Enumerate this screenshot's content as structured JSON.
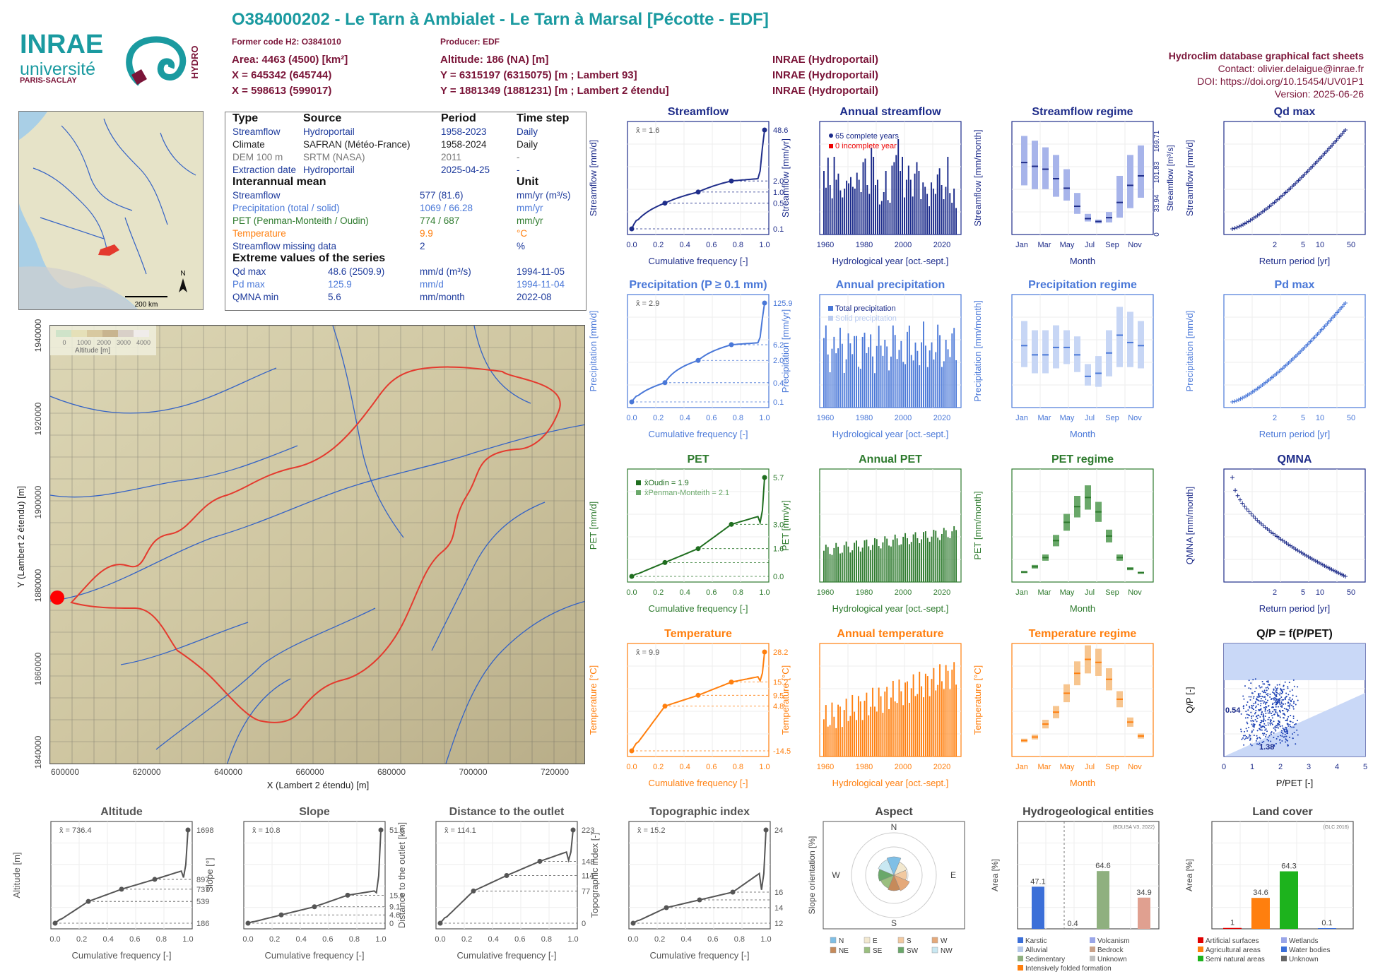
{
  "header": {
    "title": "O384000202 - Le Tarn à Ambialet - Le Tarn à Marsal [Pécotte - EDF]",
    "former_code": "Former code H2: O3841010",
    "producer": "Producer: EDF",
    "area": "Area: 4463 (4500) [km²]",
    "altitude": "Altitude: 186 (NA) [m]",
    "x93": "X = 645342 (645744)",
    "y93": "Y = 6315197 (6315075) [m ; Lambert 93]",
    "x2": "X = 598613 (599017)",
    "y2": "Y = 1881349 (1881231) [m ; Lambert 2 étendu]",
    "src1": "INRAE (Hydroportail)",
    "src2": "INRAE (Hydroportail)",
    "src3": "INRAE (Hydroportail)",
    "fact_sheets": "Hydroclim database graphical fact sheets",
    "contact": "Contact: olivier.delaigue@inrae.fr",
    "doi": "DOI: https://doi.org/10.15454/UV01P1",
    "version": "Version: 2025-06-26"
  },
  "logos": {
    "inrae": "INRAE",
    "universite": "université",
    "paris_saclay": "PARIS-SACLAY",
    "hydro": "HYDRO"
  },
  "info": {
    "h_type": "Type",
    "h_source": "Source",
    "h_period": "Period",
    "h_timestep": "Time step",
    "rows": [
      {
        "type": "Streamflow",
        "source": "Hydroportail",
        "period": "1958-2023",
        "step": "Daily"
      },
      {
        "type": "Climate",
        "source": "SAFRAN (Météo-France)",
        "period": "1958-2024",
        "step": "Daily"
      },
      {
        "type": "DEM 100 m",
        "source": "SRTM (NASA)",
        "period": "2011",
        "step": "-"
      },
      {
        "type": "Extraction date",
        "source": "Hydroportail",
        "period": "2025-04-25",
        "step": "-"
      }
    ],
    "h_interannual": "Interannual mean",
    "h_unit": "Unit",
    "means": [
      {
        "label": "Streamflow",
        "value": "577 (81.6)",
        "unit": "mm/yr (m³/s)"
      },
      {
        "label": "Precipitation (total / solid)",
        "value": "1069 / 66.28",
        "unit": "mm/yr"
      },
      {
        "label": "PET (Penman-Monteith / Oudin)",
        "value": "774 / 687",
        "unit": "mm/yr"
      },
      {
        "label": "Temperature",
        "value": "9.9",
        "unit": "°C"
      },
      {
        "label": "Streamflow missing data",
        "value": "2",
        "unit": "%"
      }
    ],
    "h_extreme": "Extreme values of the series",
    "extremes": [
      {
        "label": "Qd max",
        "value": "48.6 (2509.9)",
        "unit": "mm/d (m³/s)",
        "date": "1994-11-05"
      },
      {
        "label": "Pd max",
        "value": "125.9",
        "unit": "mm/d",
        "date": "1994-11-04"
      },
      {
        "label": "QMNA min",
        "value": "5.6",
        "unit": "mm/month",
        "date": "2022-08"
      }
    ]
  },
  "minimap": {
    "north": "N",
    "scale": "200 km"
  },
  "bigmap": {
    "legend_title": "Altitude [m]",
    "legend_ticks": [
      "0",
      "1000",
      "2000",
      "3000",
      "4000"
    ],
    "xlabel": "X (Lambert 2 étendu) [m]",
    "ylabel": "Y (Lambert 2 étendu) [m]",
    "xticks": [
      "600000",
      "620000",
      "640000",
      "660000",
      "680000",
      "700000",
      "720000"
    ],
    "yticks": [
      "1840000",
      "1860000",
      "1880000",
      "1900000",
      "1920000",
      "1940000"
    ]
  },
  "panels": {
    "streamflow": {
      "title": "Streamflow",
      "ylabel": "Streamflow [mm/d]",
      "xlabel": "Cumulative frequency [-]",
      "mean": "x̄ = 1.6",
      "right": [
        "48.6",
        "2.0",
        "1.0",
        "0.5",
        "0.1"
      ]
    },
    "annual_streamflow": {
      "title": "Annual streamflow",
      "ylabel": "Streamflow [mm/yr]",
      "xlabel": "Hydrological year [oct.-sept.]",
      "leg1": "65 complete years",
      "leg2": "0 incomplete year"
    },
    "streamflow_regime": {
      "title": "Streamflow regime",
      "ylabel": "Streamflow [mm/month]",
      "ylabel2": "Streamflow [m³/s]",
      "xlabel": "Month",
      "right": [
        "169.71",
        "101.83",
        "33.94",
        "0"
      ]
    },
    "qd_max": {
      "title": "Qd max",
      "ylabel": "Streamflow [mm/d]",
      "xlabel": "Return period [yr]"
    },
    "precipitation": {
      "title": "Precipitation (P ≥ 0.1 mm)",
      "ylabel": "Precipitation [mm/d]",
      "xlabel": "Cumulative frequency [-]",
      "mean": "x̄ = 2.9",
      "right": [
        "125.9",
        "6.2",
        "2.0",
        "0.4",
        "0.1"
      ]
    },
    "annual_precipitation": {
      "title": "Annual precipitation",
      "ylabel": "Precipitation [mm/yr]",
      "xlabel": "Hydrological year [oct.-sept.]",
      "leg1": "Total precipitation",
      "leg2": "Solid precipitation"
    },
    "precipitation_regime": {
      "title": "Precipitation regime",
      "ylabel": "Precipitation [mm/month]",
      "xlabel": "Month"
    },
    "pd_max": {
      "title": "Pd max",
      "ylabel": "Precipitation [mm/d]",
      "xlabel": "Return period [yr]"
    },
    "pet": {
      "title": "PET",
      "ylabel": "PET [mm/d]",
      "xlabel": "Cumulative frequency [-]",
      "leg1": "x̄Oudin = 1.9",
      "leg2": "x̄Penman-Monteith = 2.1",
      "right": [
        "5.7",
        "3.0",
        "1.6",
        "0.0"
      ]
    },
    "annual_pet": {
      "title": "Annual PET",
      "ylabel": "PET [mm/yr]",
      "xlabel": "Hydrological year [oct.-sept.]"
    },
    "pet_regime": {
      "title": "PET regime",
      "ylabel": "PET [mm/month]",
      "xlabel": "Month"
    },
    "qmna": {
      "title": "QMNA",
      "ylabel": "QMNA [mm/month]",
      "xlabel": "Return period [yr]"
    },
    "temperature": {
      "title": "Temperature",
      "ylabel": "Temperature [°C]",
      "xlabel": "Cumulative frequency [-]",
      "mean": "x̄ = 9.9",
      "right": [
        "28.2",
        "15.2",
        "9.5",
        "4.8",
        "-14.5"
      ]
    },
    "annual_temperature": {
      "title": "Annual temperature",
      "ylabel": "Temperature [°C]",
      "xlabel": "Hydrological year [oct.-sept.]"
    },
    "temperature_regime": {
      "title": "Temperature regime",
      "ylabel": "Temperature [°C]",
      "xlabel": "Month"
    },
    "qp": {
      "title": "Q/P = f(P/PET)",
      "ylabel": "Q/P [-]",
      "xlabel": "P/PET [-]",
      "lab1": "0.54",
      "lab2": "1.38"
    },
    "altitude": {
      "title": "Altitude",
      "ylabel": "Altitude [m]",
      "xlabel": "Cumulative frequency [-]",
      "mean": "x̄ = 736.4",
      "right": [
        "1698",
        "897",
        "737",
        "539",
        "186"
      ]
    },
    "slope": {
      "title": "Slope",
      "ylabel": "Slope [°]",
      "xlabel": "Cumulative frequency [-]",
      "mean": "x̄ = 10.8",
      "right": [
        "51.6",
        "15.5",
        "9.1",
        "4.6",
        "0"
      ]
    },
    "distance": {
      "title": "Distance to the outlet",
      "ylabel": "Distance to the outlet [km]",
      "xlabel": "Cumulative frequency [-]",
      "mean": "x̄ = 114.1",
      "right": [
        "223",
        "148",
        "114",
        "77",
        "0"
      ]
    },
    "topo": {
      "title": "Topographic index",
      "ylabel": "Topographic index [-]",
      "xlabel": "Cumulative frequency [-]",
      "mean": "x̄ = 15.2",
      "right": [
        "24",
        "16",
        "14",
        "12"
      ]
    },
    "aspect": {
      "title": "Aspect",
      "ylabel": "Slope orientation [%]",
      "dirs": [
        "N",
        "E",
        "S",
        "W"
      ],
      "legend": [
        "N",
        "E",
        "S",
        "W",
        "NE",
        "SE",
        "SW",
        "NW"
      ]
    },
    "hydrogeo": {
      "title": "Hydrogeological entities",
      "ylabel": "Area [%]",
      "source": "(BDLISA V3, 2022)",
      "legend": [
        "Karstic",
        "Volcanism",
        "Alluvial",
        "Bedrock",
        "Sedimentary",
        "Unknown",
        "Intensively folded formation"
      ]
    },
    "landcover": {
      "title": "Land cover",
      "ylabel": "Area [%]",
      "source": "(GLC 2016)",
      "legend": [
        "Artificial surfaces",
        "Wetlands",
        "Agricultural areas",
        "Water bodies",
        "Semi natural areas",
        "Unknown"
      ]
    }
  },
  "chart_data": [
    {
      "type": "line",
      "title": "Streamflow",
      "xlabel": "Cumulative frequency [-]",
      "ylabel": "Streamflow [mm/d]",
      "x": [
        0,
        0.25,
        0.5,
        0.75,
        1.0
      ],
      "y": [
        0.1,
        0.5,
        1.0,
        2.0,
        48.6
      ],
      "xlim": [
        0,
        1
      ],
      "scale": "log"
    },
    {
      "type": "bar",
      "title": "Annual streamflow",
      "ylabel": "Streamflow [mm/yr]",
      "xlim": [
        1958,
        2023
      ],
      "ylim": [
        0,
        1200
      ],
      "values": [
        720,
        530,
        870,
        560,
        410,
        880,
        620,
        690,
        500,
        420,
        520,
        610,
        580,
        650,
        540,
        520,
        700,
        620,
        480,
        820,
        860,
        560,
        460,
        980,
        880,
        560,
        620,
        340,
        380,
        480,
        720,
        390,
        360,
        780,
        820,
        900,
        1080,
        720,
        880,
        420,
        620,
        780,
        620,
        430,
        690,
        820,
        720,
        400,
        590,
        540,
        460,
        320,
        590,
        520,
        460,
        680,
        750,
        560,
        400,
        540,
        880,
        470,
        360,
        520,
        300
      ]
    },
    {
      "type": "bar",
      "title": "Streamflow regime",
      "categories": [
        "Jan",
        "Feb",
        "Mar",
        "Apr",
        "May",
        "Jun",
        "Jul",
        "Aug",
        "Sep",
        "Oct",
        "Nov",
        "Dec"
      ],
      "median": [
        72,
        68,
        65,
        55,
        45,
        26,
        13,
        10,
        14,
        30,
        48,
        58
      ],
      "q10": [
        48,
        44,
        44,
        36,
        32,
        18,
        10,
        8,
        9,
        14,
        24,
        35
      ],
      "q90": [
        100,
        95,
        88,
        80,
        65,
        40,
        18,
        12,
        20,
        58,
        80,
        90
      ],
      "ylabel": "Streamflow [mm/month]"
    },
    {
      "type": "scatter",
      "title": "Qd max",
      "x_return_period": [
        1.02,
        1.1,
        1.3,
        1.6,
        2,
        3,
        5,
        10,
        20,
        50
      ],
      "y": [
        1,
        3,
        6,
        9,
        12,
        16,
        20,
        25,
        34,
        48.6
      ],
      "ylabel": "Streamflow [mm/d]"
    },
    {
      "type": "line",
      "title": "Precipitation (P ≥ 0.1 mm)",
      "x": [
        0,
        0.25,
        0.5,
        0.75,
        1.0
      ],
      "y": [
        0.1,
        0.4,
        2.0,
        6.2,
        125.9
      ],
      "scale": "log"
    },
    {
      "type": "bar",
      "title": "Annual precipitation",
      "ylim": [
        0,
        1600
      ],
      "xlim": [
        1958,
        2024
      ]
    },
    {
      "type": "bar",
      "title": "Precipitation regime",
      "categories": [
        "Jan",
        "Feb",
        "Mar",
        "Apr",
        "May",
        "Jun",
        "Jul",
        "Aug",
        "Sep",
        "Oct",
        "Nov",
        "Dec"
      ],
      "median": [
        95,
        80,
        80,
        92,
        92,
        80,
        45,
        50,
        83,
        112,
        100,
        95
      ],
      "q10": [
        60,
        50,
        50,
        58,
        65,
        52,
        30,
        28,
        45,
        60,
        60,
        58
      ],
      "q90": [
        135,
        120,
        120,
        128,
        120,
        110,
        65,
        78,
        120,
        158,
        150,
        135
      ]
    },
    {
      "type": "scatter",
      "title": "Pd max",
      "ylim": [
        20,
        130
      ],
      "y_range": [
        30,
        125.9
      ]
    },
    {
      "type": "line",
      "title": "PET",
      "x": [
        0,
        0.25,
        0.5,
        0.75,
        1.0
      ],
      "y": [
        0.0,
        0.8,
        1.6,
        3.0,
        5.7
      ]
    },
    {
      "type": "bar",
      "title": "Annual PET",
      "ylim": [
        560,
        1000
      ],
      "xlim": [
        1958,
        2024
      ]
    },
    {
      "type": "bar",
      "title": "PET regime",
      "categories": [
        "Jan",
        "Feb",
        "Mar",
        "Apr",
        "May",
        "Jun",
        "Jul",
        "Aug",
        "Sep",
        "Oct",
        "Nov",
        "Dec"
      ],
      "median": [
        10,
        18,
        32,
        58,
        86,
        110,
        124,
        102,
        65,
        32,
        15,
        9
      ]
    },
    {
      "type": "scatter",
      "title": "QMNA",
      "ylim": [
        5,
        30
      ],
      "y_range": [
        5.6,
        28
      ]
    },
    {
      "type": "line",
      "title": "Temperature",
      "x": [
        0,
        0.25,
        0.5,
        0.75,
        1.0
      ],
      "y": [
        -14.5,
        4.8,
        9.5,
        15.2,
        28.2
      ]
    },
    {
      "type": "bar",
      "title": "Annual temperature",
      "ylim": [
        8,
        11.7
      ],
      "xlim": [
        1958,
        2024
      ]
    },
    {
      "type": "bar",
      "title": "Temperature regime",
      "categories": [
        "Jan",
        "Feb",
        "Mar",
        "Apr",
        "May",
        "Jun",
        "Jul",
        "Aug",
        "Sep",
        "Oct",
        "Nov",
        "Dec"
      ],
      "median": [
        2.5,
        3.2,
        5.8,
        8.2,
        12.0,
        16.0,
        18.8,
        18.2,
        14.8,
        10.8,
        6.2,
        3.4
      ]
    },
    {
      "type": "scatter",
      "title": "Q/P = f(P/PET)",
      "xlim": [
        0,
        5
      ],
      "ylim": [
        0,
        1.4
      ],
      "labels": [
        0.54,
        1.38
      ]
    },
    {
      "type": "line",
      "title": "Altitude",
      "x": [
        0,
        0.25,
        0.5,
        0.75,
        1.0
      ],
      "y": [
        186,
        539,
        737,
        897,
        1698
      ]
    },
    {
      "type": "line",
      "title": "Slope",
      "x": [
        0,
        0.25,
        0.5,
        0.75,
        1.0
      ],
      "y": [
        0,
        4.6,
        9.1,
        15.5,
        51.6
      ]
    },
    {
      "type": "line",
      "title": "Distance to the outlet",
      "x": [
        0,
        0.25,
        0.5,
        0.75,
        1.0
      ],
      "y": [
        0,
        77,
        114,
        148,
        223
      ]
    },
    {
      "type": "line",
      "title": "Topographic index",
      "x": [
        0,
        0.25,
        0.5,
        0.75,
        1.0
      ],
      "y": [
        12,
        14,
        15,
        16,
        24
      ]
    },
    {
      "type": "bar",
      "title": "Hydrogeological entities",
      "categories": [
        "Karstic",
        "Sedimentary",
        "Bedrock",
        "Alluvial"
      ],
      "values": [
        47.1,
        64.6,
        34.9,
        0.4
      ],
      "ylabel": "Area [%]"
    },
    {
      "type": "bar",
      "title": "Land cover",
      "categories": [
        "Artificial surfaces",
        "Agricultural areas",
        "Semi natural areas",
        "Water bodies"
      ],
      "values": [
        1,
        34.6,
        64.3,
        0.1
      ],
      "ylabel": "Area [%]"
    }
  ]
}
